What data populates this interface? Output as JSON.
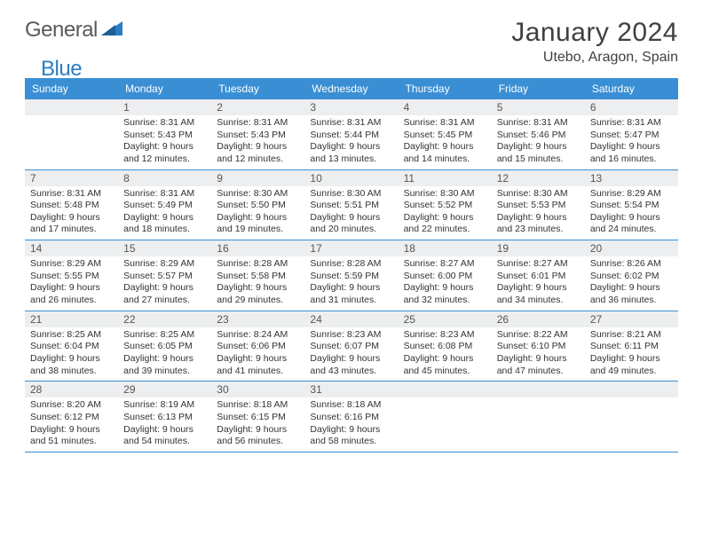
{
  "brand": {
    "word1": "General",
    "word2": "Blue"
  },
  "title": "January 2024",
  "location": "Utebo, Aragon, Spain",
  "days_of_week": [
    "Sunday",
    "Monday",
    "Tuesday",
    "Wednesday",
    "Thursday",
    "Friday",
    "Saturday"
  ],
  "colors": {
    "header_bg": "#3a8fd4",
    "header_text": "#ffffff",
    "daynum_bg": "#eceef0",
    "week_border": "#3a8fd4",
    "brand_gray": "#5a5a5a",
    "brand_blue": "#2a7ec4"
  },
  "weeks": [
    [
      {
        "n": "",
        "sr": "",
        "ss": "",
        "dl": ""
      },
      {
        "n": "1",
        "sr": "Sunrise: 8:31 AM",
        "ss": "Sunset: 5:43 PM",
        "dl": "Daylight: 9 hours and 12 minutes."
      },
      {
        "n": "2",
        "sr": "Sunrise: 8:31 AM",
        "ss": "Sunset: 5:43 PM",
        "dl": "Daylight: 9 hours and 12 minutes."
      },
      {
        "n": "3",
        "sr": "Sunrise: 8:31 AM",
        "ss": "Sunset: 5:44 PM",
        "dl": "Daylight: 9 hours and 13 minutes."
      },
      {
        "n": "4",
        "sr": "Sunrise: 8:31 AM",
        "ss": "Sunset: 5:45 PM",
        "dl": "Daylight: 9 hours and 14 minutes."
      },
      {
        "n": "5",
        "sr": "Sunrise: 8:31 AM",
        "ss": "Sunset: 5:46 PM",
        "dl": "Daylight: 9 hours and 15 minutes."
      },
      {
        "n": "6",
        "sr": "Sunrise: 8:31 AM",
        "ss": "Sunset: 5:47 PM",
        "dl": "Daylight: 9 hours and 16 minutes."
      }
    ],
    [
      {
        "n": "7",
        "sr": "Sunrise: 8:31 AM",
        "ss": "Sunset: 5:48 PM",
        "dl": "Daylight: 9 hours and 17 minutes."
      },
      {
        "n": "8",
        "sr": "Sunrise: 8:31 AM",
        "ss": "Sunset: 5:49 PM",
        "dl": "Daylight: 9 hours and 18 minutes."
      },
      {
        "n": "9",
        "sr": "Sunrise: 8:30 AM",
        "ss": "Sunset: 5:50 PM",
        "dl": "Daylight: 9 hours and 19 minutes."
      },
      {
        "n": "10",
        "sr": "Sunrise: 8:30 AM",
        "ss": "Sunset: 5:51 PM",
        "dl": "Daylight: 9 hours and 20 minutes."
      },
      {
        "n": "11",
        "sr": "Sunrise: 8:30 AM",
        "ss": "Sunset: 5:52 PM",
        "dl": "Daylight: 9 hours and 22 minutes."
      },
      {
        "n": "12",
        "sr": "Sunrise: 8:30 AM",
        "ss": "Sunset: 5:53 PM",
        "dl": "Daylight: 9 hours and 23 minutes."
      },
      {
        "n": "13",
        "sr": "Sunrise: 8:29 AM",
        "ss": "Sunset: 5:54 PM",
        "dl": "Daylight: 9 hours and 24 minutes."
      }
    ],
    [
      {
        "n": "14",
        "sr": "Sunrise: 8:29 AM",
        "ss": "Sunset: 5:55 PM",
        "dl": "Daylight: 9 hours and 26 minutes."
      },
      {
        "n": "15",
        "sr": "Sunrise: 8:29 AM",
        "ss": "Sunset: 5:57 PM",
        "dl": "Daylight: 9 hours and 27 minutes."
      },
      {
        "n": "16",
        "sr": "Sunrise: 8:28 AM",
        "ss": "Sunset: 5:58 PM",
        "dl": "Daylight: 9 hours and 29 minutes."
      },
      {
        "n": "17",
        "sr": "Sunrise: 8:28 AM",
        "ss": "Sunset: 5:59 PM",
        "dl": "Daylight: 9 hours and 31 minutes."
      },
      {
        "n": "18",
        "sr": "Sunrise: 8:27 AM",
        "ss": "Sunset: 6:00 PM",
        "dl": "Daylight: 9 hours and 32 minutes."
      },
      {
        "n": "19",
        "sr": "Sunrise: 8:27 AM",
        "ss": "Sunset: 6:01 PM",
        "dl": "Daylight: 9 hours and 34 minutes."
      },
      {
        "n": "20",
        "sr": "Sunrise: 8:26 AM",
        "ss": "Sunset: 6:02 PM",
        "dl": "Daylight: 9 hours and 36 minutes."
      }
    ],
    [
      {
        "n": "21",
        "sr": "Sunrise: 8:25 AM",
        "ss": "Sunset: 6:04 PM",
        "dl": "Daylight: 9 hours and 38 minutes."
      },
      {
        "n": "22",
        "sr": "Sunrise: 8:25 AM",
        "ss": "Sunset: 6:05 PM",
        "dl": "Daylight: 9 hours and 39 minutes."
      },
      {
        "n": "23",
        "sr": "Sunrise: 8:24 AM",
        "ss": "Sunset: 6:06 PM",
        "dl": "Daylight: 9 hours and 41 minutes."
      },
      {
        "n": "24",
        "sr": "Sunrise: 8:23 AM",
        "ss": "Sunset: 6:07 PM",
        "dl": "Daylight: 9 hours and 43 minutes."
      },
      {
        "n": "25",
        "sr": "Sunrise: 8:23 AM",
        "ss": "Sunset: 6:08 PM",
        "dl": "Daylight: 9 hours and 45 minutes."
      },
      {
        "n": "26",
        "sr": "Sunrise: 8:22 AM",
        "ss": "Sunset: 6:10 PM",
        "dl": "Daylight: 9 hours and 47 minutes."
      },
      {
        "n": "27",
        "sr": "Sunrise: 8:21 AM",
        "ss": "Sunset: 6:11 PM",
        "dl": "Daylight: 9 hours and 49 minutes."
      }
    ],
    [
      {
        "n": "28",
        "sr": "Sunrise: 8:20 AM",
        "ss": "Sunset: 6:12 PM",
        "dl": "Daylight: 9 hours and 51 minutes."
      },
      {
        "n": "29",
        "sr": "Sunrise: 8:19 AM",
        "ss": "Sunset: 6:13 PM",
        "dl": "Daylight: 9 hours and 54 minutes."
      },
      {
        "n": "30",
        "sr": "Sunrise: 8:18 AM",
        "ss": "Sunset: 6:15 PM",
        "dl": "Daylight: 9 hours and 56 minutes."
      },
      {
        "n": "31",
        "sr": "Sunrise: 8:18 AM",
        "ss": "Sunset: 6:16 PM",
        "dl": "Daylight: 9 hours and 58 minutes."
      },
      {
        "n": "",
        "sr": "",
        "ss": "",
        "dl": ""
      },
      {
        "n": "",
        "sr": "",
        "ss": "",
        "dl": ""
      },
      {
        "n": "",
        "sr": "",
        "ss": "",
        "dl": ""
      }
    ]
  ]
}
